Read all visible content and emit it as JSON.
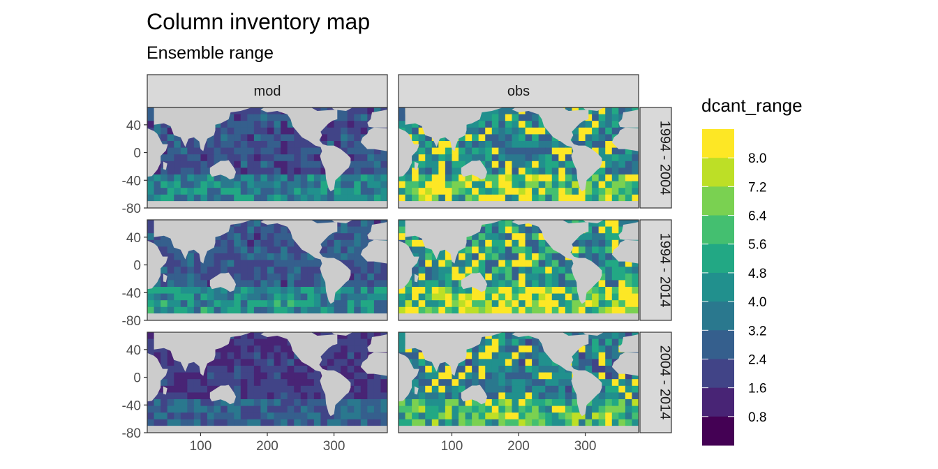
{
  "title": "Column inventory map",
  "subtitle": "Ensemble range",
  "colors": {
    "land": "#cccccc",
    "strip": "#d9d9d9",
    "panel_border": "#333333"
  },
  "chart_data": {
    "type": "heatmap",
    "facet_columns": [
      "mod",
      "obs"
    ],
    "facet_rows": [
      "1994 - 2004",
      "1994 - 2014",
      "2004 - 2014"
    ],
    "x_ticks": [
      100,
      200,
      300
    ],
    "y_ticks": [
      40,
      0,
      -40,
      -80
    ],
    "xlim": [
      20,
      380
    ],
    "ylim": [
      -80,
      65
    ],
    "legend": {
      "title": "dcant_range",
      "labels": [
        "8.0",
        "7.2",
        "6.4",
        "5.6",
        "4.8",
        "4.0",
        "3.2",
        "2.4",
        "1.6",
        "0.8"
      ],
      "breaks": [
        0.8,
        1.6,
        2.4,
        3.2,
        4.0,
        4.8,
        5.6,
        6.4,
        7.2,
        8.0
      ],
      "colors": [
        "#440154",
        "#482475",
        "#414487",
        "#355f8d",
        "#2a788e",
        "#21908d",
        "#22a884",
        "#44bf70",
        "#7ad151",
        "#bddf26",
        "#fde725"
      ],
      "placement": "right"
    },
    "panel_levels": [
      [
        0.3,
        0.5
      ],
      [
        0.32,
        0.55
      ],
      [
        0.22,
        0.45
      ]
    ]
  }
}
